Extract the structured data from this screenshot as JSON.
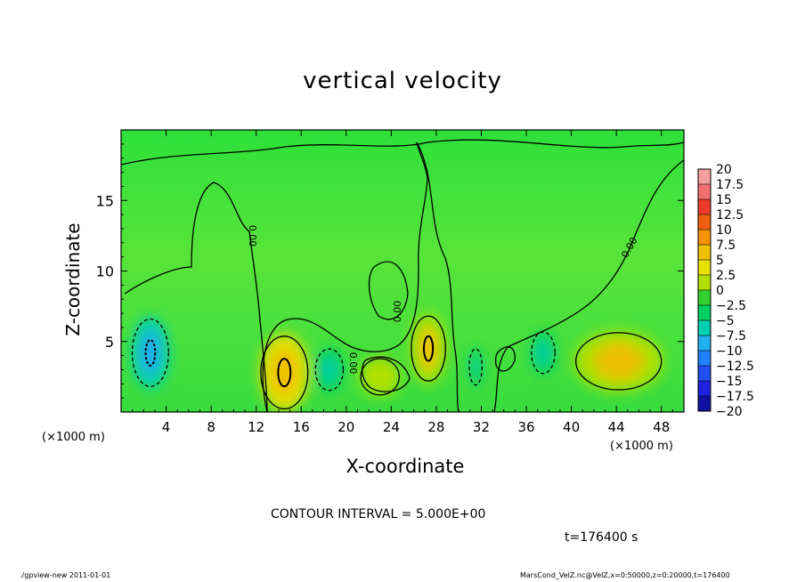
{
  "chart_data": {
    "type": "heatmap",
    "title": "vertical velocity",
    "xlabel": "X-coordinate",
    "ylabel": "Z-coordinate",
    "x_unit": "(×1000 m)",
    "xlim": [
      0,
      50
    ],
    "ylim": [
      0,
      20
    ],
    "x_ticks": [
      "4",
      "8",
      "12",
      "16",
      "20",
      "24",
      "28",
      "32",
      "36",
      "40",
      "44",
      "48"
    ],
    "y_ticks": [
      "5",
      "10",
      "15"
    ],
    "x_tick_values": [
      4,
      8,
      12,
      16,
      20,
      24,
      28,
      32,
      36,
      40,
      44,
      48
    ],
    "y_tick_values": [
      5,
      10,
      15
    ],
    "colorbar": {
      "levels": [
        "20",
        "17.5",
        "15",
        "12.5",
        "10",
        "7.5",
        "5",
        "2.5",
        "0",
        "-2.5",
        "-5",
        "-7.5",
        "-10",
        "-12.5",
        "-15",
        "-17.5",
        "-20"
      ],
      "colors": [
        "#f4a0a0",
        "#f07070",
        "#ef3a2a",
        "#f06010",
        "#f49400",
        "#f0c000",
        "#e8e000",
        "#b0e000",
        "#30d030",
        "#00d060",
        "#00d0b0",
        "#20b0f0",
        "#2080ff",
        "#2050f0",
        "#2020e0",
        "#1010a0",
        "#6010a0"
      ]
    },
    "contour_interval": "CONTOUR INTERVAL = 5.000E+00",
    "contour_labels": [
      "0.00",
      "0.00",
      "0.00",
      "0.00"
    ],
    "features": [
      {
        "kind": "updraft",
        "x": 14.5,
        "z": 2.8,
        "rx": 2.2,
        "rz": 2.8,
        "peak": 8.5
      },
      {
        "kind": "updraft",
        "x": 27.3,
        "z": 4.5,
        "rx": 1.6,
        "rz": 2.5,
        "peak": 7
      },
      {
        "kind": "updraft",
        "x": 44.2,
        "z": 3.6,
        "rx": 4.0,
        "rz": 2.2,
        "peak": 6.5
      },
      {
        "kind": "updraft",
        "x": 23.0,
        "z": 2.5,
        "rx": 1.8,
        "rz": 1.4,
        "peak": 3.5
      },
      {
        "kind": "downdraft",
        "x": 2.6,
        "z": 4.2,
        "rx": 1.7,
        "rz": 2.6,
        "peak": -8
      },
      {
        "kind": "downdraft",
        "x": 18.5,
        "z": 3.0,
        "rx": 1.3,
        "rz": 1.6,
        "peak": -5
      },
      {
        "kind": "downdraft",
        "x": 31.5,
        "z": 3.2,
        "rx": 0.6,
        "rz": 1.4,
        "peak": -5
      },
      {
        "kind": "downdraft",
        "x": 37.5,
        "z": 4.2,
        "rx": 1.1,
        "rz": 1.6,
        "peak": -5
      }
    ]
  },
  "notes": {
    "xunit_left": "(×1000 m)",
    "xunit_right": "(×1000 m)",
    "time": "t=176400 s",
    "footer_left": "./gpview-new   2011-01-01",
    "footer_right": "MarsCond_VelZ.nc@VelZ,x=0:50000,z=0:20000,t=176400"
  }
}
